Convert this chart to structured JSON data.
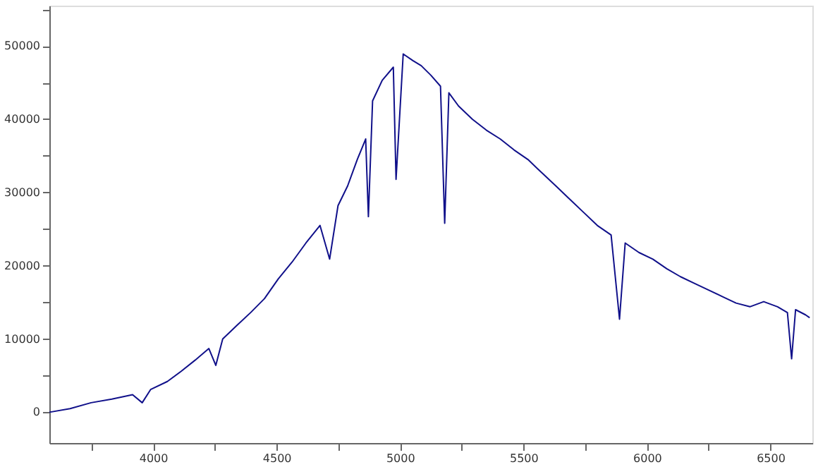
{
  "chart_data": {
    "type": "line",
    "x": [
      3580,
      3664,
      3749,
      3833,
      3917,
      3956,
      3990,
      4058,
      4114,
      4170,
      4226,
      4254,
      4282,
      4338,
      4395,
      4451,
      4507,
      4563,
      4619,
      4676,
      4715,
      4749,
      4788,
      4827,
      4861,
      4872,
      4889,
      4928,
      4973,
      4984,
      5013,
      5052,
      5086,
      5125,
      5164,
      5181,
      5198,
      5237,
      5293,
      5350,
      5406,
      5462,
      5518,
      5574,
      5631,
      5687,
      5743,
      5799,
      5855,
      5889,
      5912,
      5968,
      6024,
      6080,
      6136,
      6192,
      6248,
      6305,
      6361,
      6417,
      6473,
      6529,
      6569,
      6586,
      6602,
      6642,
      6659
    ],
    "series": [
      {
        "color": "#10108a",
        "values": [
          0,
          500,
          1300,
          1800,
          2400,
          1300,
          3100,
          4200,
          5600,
          7100,
          8700,
          6400,
          10000,
          11800,
          13600,
          15500,
          18200,
          20500,
          23100,
          25500,
          20900,
          28200,
          30900,
          34500,
          37300,
          26700,
          42500,
          45300,
          47100,
          31800,
          48900,
          48000,
          47300,
          46000,
          44500,
          25800,
          43600,
          41800,
          40000,
          38500,
          37300,
          35800,
          34500,
          32700,
          30900,
          29100,
          27300,
          25500,
          24200,
          12700,
          23100,
          21800,
          20900,
          19600,
          18500,
          17600,
          16700,
          15800,
          14900,
          14400,
          15100,
          14400,
          13600,
          7300,
          14000,
          13300,
          12900
        ]
      }
    ],
    "xlim": [
      3580,
      6670
    ],
    "xticks": [
      {
        "value": 3750,
        "label": null
      },
      4000,
      {
        "value": 4250,
        "label": null
      },
      4500,
      {
        "value": 4750,
        "label": null
      },
      5000,
      {
        "value": 5250,
        "label": null
      },
      5500,
      {
        "value": 5750,
        "label": null
      },
      6000,
      {
        "value": 6250,
        "label": null
      },
      6500
    ],
    "ylim": [
      -4200,
      55500
    ],
    "yticks": [
      0,
      {
        "value": 5000,
        "label": null
      },
      10000,
      {
        "value": 15000,
        "label": null
      },
      20000,
      {
        "value": 25000,
        "label": null
      },
      30000,
      {
        "value": 35000,
        "label": null
      },
      40000,
      {
        "value": 45000,
        "label": null
      },
      50000,
      {
        "value": 55000,
        "label": null
      }
    ],
    "grid": false,
    "marker": "none",
    "line_style": "solid"
  }
}
